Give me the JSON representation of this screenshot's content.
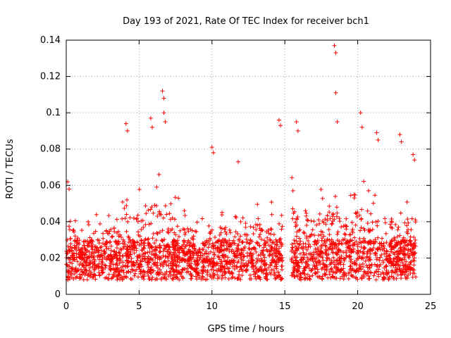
{
  "chart_data": {
    "type": "scatter",
    "title": "Day 193 of 2021, Rate Of TEC Index for receiver bch1",
    "xlabel": "GPS time / hours",
    "ylabel": "ROTI / TECUs",
    "xlim": [
      0,
      25
    ],
    "ylim": [
      0,
      0.14
    ],
    "x_ticks": [
      0,
      5,
      10,
      15,
      20,
      25
    ],
    "y_ticks": [
      0,
      0.02,
      0.04,
      0.06,
      0.08,
      0.1,
      0.12,
      0.14
    ],
    "x_tick_labels": [
      "0",
      "5",
      "10",
      "15",
      "20",
      "25"
    ],
    "y_tick_labels": [
      "0",
      "0.02",
      "0.04",
      "0.06",
      "0.08",
      "0.1",
      "0.12",
      "0.14"
    ],
    "grid": true,
    "marker": "+",
    "series_color": "#ff0000",
    "data_gap_hours": [
      14.85,
      15.45
    ],
    "envelope": {
      "description": "typical upper envelope (hours, ROTI)",
      "x": [
        0,
        0.3,
        1,
        2,
        3,
        4,
        5,
        6,
        6.7,
        7,
        8,
        9,
        10,
        11,
        12,
        13,
        14,
        14.8,
        15.5,
        16,
        17,
        18,
        19,
        20,
        21,
        22,
        23,
        24
      ],
      "y": [
        0.055,
        0.05,
        0.035,
        0.045,
        0.048,
        0.055,
        0.058,
        0.065,
        0.07,
        0.06,
        0.05,
        0.045,
        0.05,
        0.048,
        0.045,
        0.05,
        0.05,
        0.06,
        0.065,
        0.06,
        0.055,
        0.065,
        0.06,
        0.065,
        0.06,
        0.055,
        0.05,
        0.06
      ]
    },
    "peaks": {
      "x": [
        0.1,
        0.2,
        4.1,
        4.2,
        5.8,
        5.9,
        6.6,
        6.7,
        6.7,
        6.8,
        10.0,
        10.1,
        11.8,
        14.6,
        14.7,
        15.8,
        15.9,
        18.4,
        18.5,
        18.5,
        18.6,
        20.2,
        20.3,
        21.3,
        21.4,
        22.9,
        23.0,
        23.8,
        23.9
      ],
      "y": [
        0.062,
        0.058,
        0.094,
        0.09,
        0.097,
        0.092,
        0.112,
        0.108,
        0.1,
        0.095,
        0.081,
        0.078,
        0.073,
        0.096,
        0.093,
        0.095,
        0.09,
        0.137,
        0.133,
        0.111,
        0.095,
        0.1,
        0.092,
        0.089,
        0.085,
        0.088,
        0.084,
        0.077,
        0.074
      ]
    }
  }
}
